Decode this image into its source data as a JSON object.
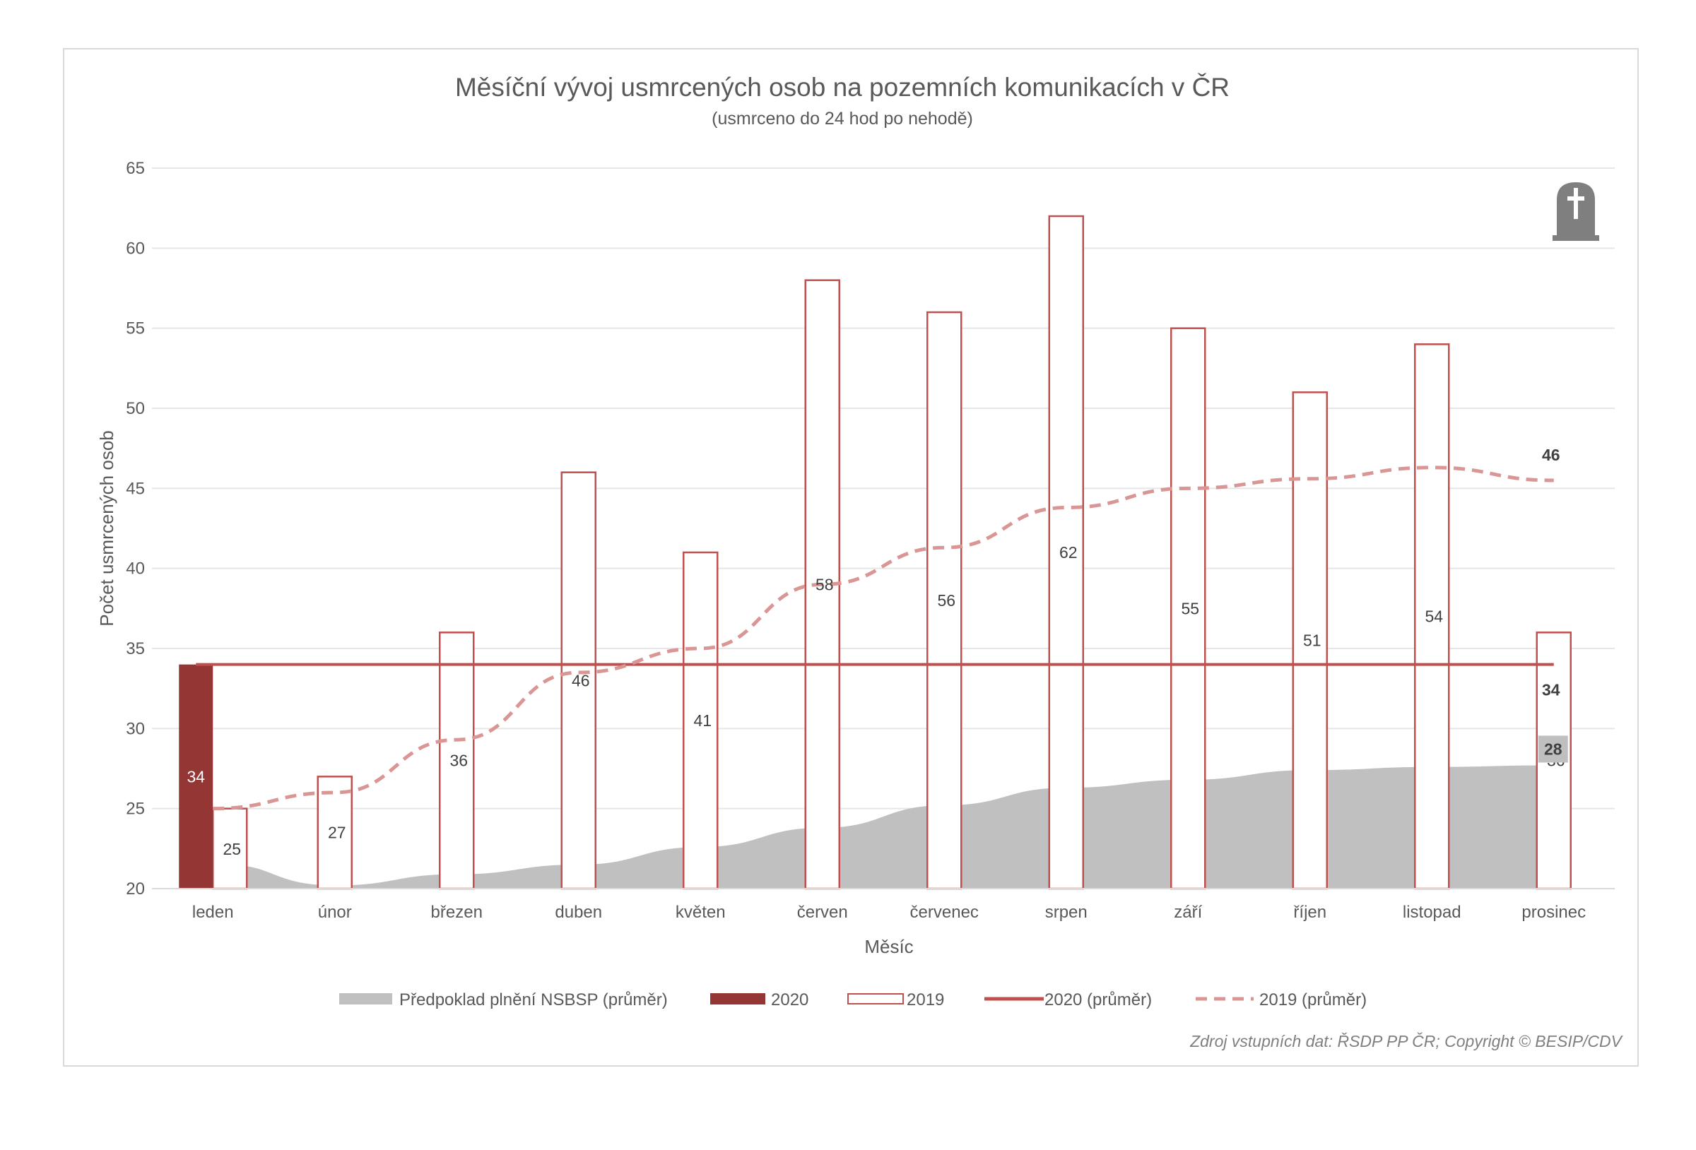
{
  "chart_data": {
    "type": "bar",
    "title": "Měsíční vývoj usmrcených osob na pozemních komunikacích v ČR",
    "subtitle": "(usmrceno do 24 hod po nehodě)",
    "xlabel": "Měsíc",
    "ylabel": "Počet usmrcených osob",
    "ylim": [
      20,
      65
    ],
    "yticks": [
      20,
      25,
      30,
      35,
      40,
      45,
      50,
      55,
      60,
      65
    ],
    "grid": true,
    "legend_position": "bottom",
    "categories": [
      "leden",
      "únor",
      "březen",
      "duben",
      "květen",
      "červen",
      "červenec",
      "srpen",
      "září",
      "říjen",
      "listopad",
      "prosinec"
    ],
    "series": [
      {
        "name": "Předpoklad plnění NSBSP (průměr)",
        "kind": "area",
        "color": "#c0c0c0",
        "values": [
          21.5,
          20.2,
          20.9,
          21.5,
          22.6,
          23.8,
          25.2,
          26.3,
          26.8,
          27.4,
          27.6,
          27.7
        ]
      },
      {
        "name": "2020",
        "kind": "bar",
        "color": "#943634",
        "values": [
          34,
          null,
          null,
          null,
          null,
          null,
          null,
          null,
          null,
          null,
          null,
          null
        ]
      },
      {
        "name": "2019",
        "kind": "bar",
        "color": "#c0504d",
        "values": [
          25,
          27,
          36,
          46,
          41,
          58,
          56,
          62,
          55,
          51,
          54,
          36
        ]
      },
      {
        "name": "2020 (průměr)",
        "kind": "line",
        "color": "#c0504d",
        "values": [
          34,
          34,
          34,
          34,
          34,
          34,
          34,
          34,
          34,
          34,
          34,
          34
        ]
      },
      {
        "name": "2019 (průměr)",
        "kind": "dashed-line",
        "color": "#d99694",
        "values": [
          25,
          26,
          29.3,
          33.5,
          35,
          39,
          41.3,
          43.8,
          45,
          45.6,
          46.3,
          45.5
        ]
      }
    ],
    "data_labels": {
      "bar_2020": [
        "34"
      ],
      "bar_2019": [
        "25",
        "27",
        "36",
        "46",
        "41",
        "58",
        "56",
        "62",
        "55",
        "51",
        "54",
        "36"
      ],
      "end_2019_avg": "46",
      "end_2020_avg": "34",
      "end_nsbsp": "28"
    },
    "icon": "gravestone-icon",
    "source_note": "Zdroj vstupních dat: ŘSDP PP ČR; Copyright © BESIP/CDV"
  },
  "colors": {
    "bar_2020": "#943634",
    "bar_2019_outline": "#c0504d",
    "line_2020_avg": "#c0504d",
    "line_2019_avg": "#d99694",
    "area_nsbsp": "#c0c0c0",
    "grid": "#e6e6e6",
    "text": "#595959",
    "icon": "#7f7f7f"
  }
}
